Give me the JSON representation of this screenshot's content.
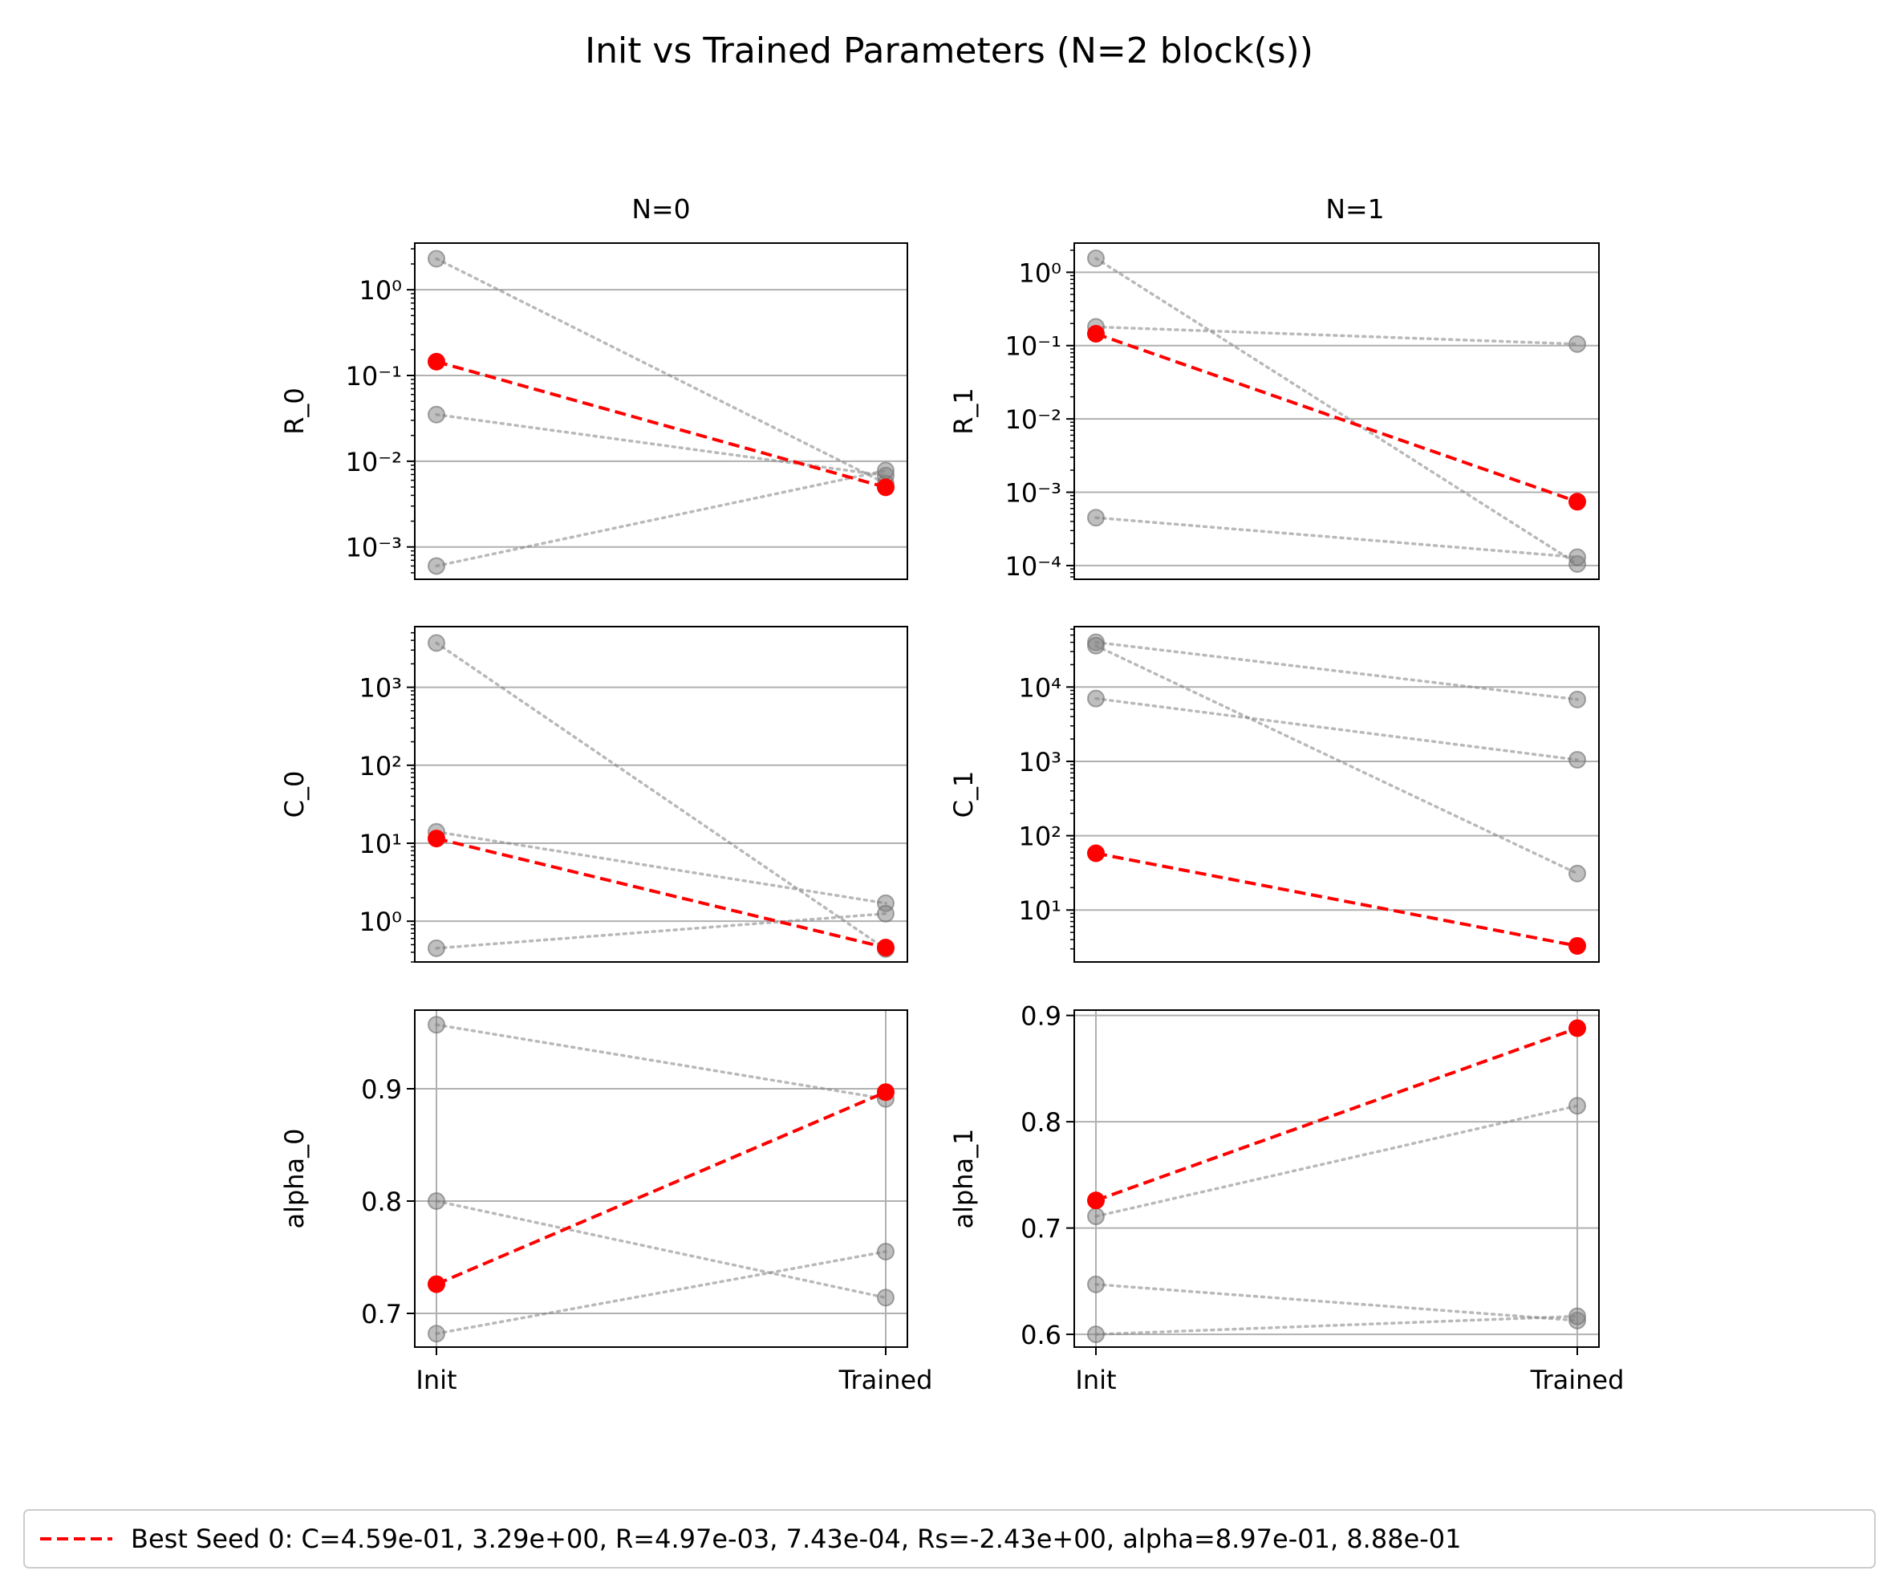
{
  "figure": {
    "title": "Init vs Trained Parameters (N=2 block(s))",
    "columns": [
      "N=0",
      "N=1"
    ],
    "legend": {
      "label": "Best Seed 0: C=4.59e-01, 3.29e+00, R=4.97e-03, 7.43e-04, Rs=-2.43e+00, alpha=8.97e-01, 8.88e-01",
      "location": "bottom-center",
      "line_color": "#ff0000",
      "line_style": "dashed"
    },
    "colors": {
      "best": "#ff0000",
      "seed": "#999999",
      "grid": "#b0b0b0",
      "axes": "#000000"
    }
  },
  "chart_data": [
    {
      "type": "line",
      "id": "R_0",
      "column": "N=0",
      "row": "R",
      "ylabel": "R_0",
      "yscale": "log",
      "ylim": [
        0.00042,
        3.5
      ],
      "yticks": [
        {
          "value": 1,
          "label": "10⁰"
        },
        {
          "value": 0.1,
          "label": "10⁻¹"
        },
        {
          "value": 0.01,
          "label": "10⁻²"
        },
        {
          "value": 0.001,
          "label": "10⁻³"
        }
      ],
      "categories": [
        "Init",
        "Trained"
      ],
      "show_xticklabels": false,
      "xgrid": false,
      "series": [
        {
          "name": "seed",
          "values": [
            2.3,
            0.0055
          ]
        },
        {
          "name": "seed",
          "values": [
            0.035,
            0.0068
          ]
        },
        {
          "name": "seed",
          "values": [
            0.0006,
            0.0078
          ]
        },
        {
          "name": "Best Seed 0",
          "best": true,
          "values": [
            0.145,
            0.00497
          ]
        }
      ]
    },
    {
      "type": "line",
      "id": "R_1",
      "column": "N=1",
      "row": "R",
      "ylabel": "R_1",
      "yscale": "log",
      "ylim": [
        6.5e-05,
        2.5
      ],
      "yticks": [
        {
          "value": 1,
          "label": "10⁰"
        },
        {
          "value": 0.1,
          "label": "10⁻¹"
        },
        {
          "value": 0.01,
          "label": "10⁻²"
        },
        {
          "value": 0.001,
          "label": "10⁻³"
        },
        {
          "value": 0.0001,
          "label": "10⁻⁴"
        }
      ],
      "categories": [
        "Init",
        "Trained"
      ],
      "show_xticklabels": false,
      "xgrid": false,
      "series": [
        {
          "name": "seed",
          "values": [
            1.55,
            0.000105
          ]
        },
        {
          "name": "seed",
          "values": [
            0.18,
            0.105
          ]
        },
        {
          "name": "seed",
          "values": [
            0.00045,
            0.00013
          ]
        },
        {
          "name": "Best Seed 0",
          "best": true,
          "values": [
            0.145,
            0.000743
          ]
        }
      ]
    },
    {
      "type": "line",
      "id": "C_0",
      "column": "N=0",
      "row": "C",
      "ylabel": "C_0",
      "yscale": "log",
      "ylim": [
        0.3,
        6000
      ],
      "yticks": [
        {
          "value": 1000,
          "label": "10³"
        },
        {
          "value": 100,
          "label": "10²"
        },
        {
          "value": 10,
          "label": "10¹"
        },
        {
          "value": 1,
          "label": "10⁰"
        }
      ],
      "categories": [
        "Init",
        "Trained"
      ],
      "show_xticklabels": false,
      "xgrid": false,
      "series": [
        {
          "name": "seed",
          "values": [
            3700,
            0.44
          ]
        },
        {
          "name": "seed",
          "values": [
            14,
            1.7
          ]
        },
        {
          "name": "seed",
          "values": [
            0.45,
            1.25
          ]
        },
        {
          "name": "Best Seed 0",
          "best": true,
          "values": [
            11.5,
            0.459
          ]
        }
      ]
    },
    {
      "type": "line",
      "id": "C_1",
      "column": "N=1",
      "row": "C",
      "ylabel": "C_1",
      "yscale": "log",
      "ylim": [
        2.0,
        65000
      ],
      "yticks": [
        {
          "value": 10000,
          "label": "10⁴"
        },
        {
          "value": 1000,
          "label": "10³"
        },
        {
          "value": 100,
          "label": "10²"
        },
        {
          "value": 10,
          "label": "10¹"
        }
      ],
      "categories": [
        "Init",
        "Trained"
      ],
      "show_xticklabels": false,
      "xgrid": false,
      "series": [
        {
          "name": "seed",
          "values": [
            40000,
            6800
          ]
        },
        {
          "name": "seed",
          "values": [
            36000,
            31
          ]
        },
        {
          "name": "seed",
          "values": [
            7000,
            1050
          ]
        },
        {
          "name": "Best Seed 0",
          "best": true,
          "values": [
            58,
            3.29
          ]
        }
      ]
    },
    {
      "type": "line",
      "id": "alpha_0",
      "column": "N=0",
      "row": "alpha",
      "ylabel": "alpha_0",
      "yscale": "linear",
      "ylim": [
        0.67,
        0.97
      ],
      "yticks": [
        {
          "value": 0.9,
          "label": "0.9"
        },
        {
          "value": 0.8,
          "label": "0.8"
        },
        {
          "value": 0.7,
          "label": "0.7"
        }
      ],
      "categories": [
        "Init",
        "Trained"
      ],
      "show_xticklabels": true,
      "xgrid": true,
      "series": [
        {
          "name": "seed",
          "values": [
            0.957,
            0.891
          ]
        },
        {
          "name": "seed",
          "values": [
            0.8,
            0.714
          ]
        },
        {
          "name": "seed",
          "values": [
            0.682,
            0.755
          ]
        },
        {
          "name": "Best Seed 0",
          "best": true,
          "values": [
            0.726,
            0.897
          ]
        }
      ]
    },
    {
      "type": "line",
      "id": "alpha_1",
      "column": "N=1",
      "row": "alpha",
      "ylabel": "alpha_1",
      "yscale": "linear",
      "ylim": [
        0.588,
        0.905
      ],
      "yticks": [
        {
          "value": 0.9,
          "label": "0.9"
        },
        {
          "value": 0.8,
          "label": "0.8"
        },
        {
          "value": 0.7,
          "label": "0.7"
        },
        {
          "value": 0.6,
          "label": "0.6"
        }
      ],
      "categories": [
        "Init",
        "Trained"
      ],
      "show_xticklabels": true,
      "xgrid": true,
      "series": [
        {
          "name": "seed",
          "values": [
            0.711,
            0.815
          ]
        },
        {
          "name": "seed",
          "values": [
            0.647,
            0.613
          ]
        },
        {
          "name": "seed",
          "values": [
            0.6,
            0.617
          ]
        },
        {
          "name": "Best Seed 0",
          "best": true,
          "values": [
            0.726,
            0.888
          ]
        }
      ]
    }
  ]
}
